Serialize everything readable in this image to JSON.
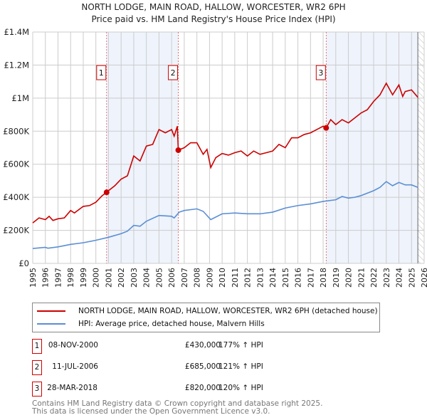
{
  "chart_data": {
    "type": "line",
    "title": "NORTH LODGE, MAIN ROAD, HALLOW, WORCESTER, WR2 6PH",
    "subtitle": "Price paid vs. HM Land Registry's House Price Index (HPI)",
    "xlim": [
      1995,
      2026
    ],
    "ylim": [
      0,
      1400000
    ],
    "x_ticks": [
      "1995",
      "1996",
      "1997",
      "1998",
      "1999",
      "2000",
      "2001",
      "2002",
      "2003",
      "2004",
      "2005",
      "2006",
      "2007",
      "2008",
      "2009",
      "2010",
      "2011",
      "2012",
      "2013",
      "2014",
      "2015",
      "2016",
      "2017",
      "2018",
      "2019",
      "2020",
      "2021",
      "2022",
      "2023",
      "2024",
      "2025",
      "2026"
    ],
    "y_ticks": [
      {
        "v": 0,
        "label": "£0"
      },
      {
        "v": 200000,
        "label": "£200K"
      },
      {
        "v": 400000,
        "label": "£400K"
      },
      {
        "v": 600000,
        "label": "£600K"
      },
      {
        "v": 800000,
        "label": "£800K"
      },
      {
        "v": 1000000,
        "label": "£1M"
      },
      {
        "v": 1200000,
        "label": "£1.2M"
      },
      {
        "v": 1400000,
        "label": "£1.4M"
      }
    ],
    "grid": true,
    "data_end": 2025.5,
    "series": [
      {
        "name": "NORTH LODGE, MAIN ROAD, HALLOW, WORCESTER, WR2 6PH (detached house)",
        "color": "#cc0000",
        "points": [
          [
            1995,
            245000
          ],
          [
            1995.5,
            275000
          ],
          [
            1996,
            265000
          ],
          [
            1996.3,
            285000
          ],
          [
            1996.6,
            260000
          ],
          [
            1997,
            270000
          ],
          [
            1997.5,
            275000
          ],
          [
            1998,
            320000
          ],
          [
            1998.3,
            305000
          ],
          [
            1999,
            345000
          ],
          [
            1999.5,
            350000
          ],
          [
            2000,
            370000
          ],
          [
            2000.5,
            410000
          ],
          [
            2000.85,
            430000
          ],
          [
            2001,
            440000
          ],
          [
            2001.5,
            470000
          ],
          [
            2002,
            510000
          ],
          [
            2002.5,
            530000
          ],
          [
            2003,
            650000
          ],
          [
            2003.5,
            620000
          ],
          [
            2004,
            710000
          ],
          [
            2004.5,
            720000
          ],
          [
            2005,
            810000
          ],
          [
            2005.5,
            790000
          ],
          [
            2006,
            810000
          ],
          [
            2006.2,
            770000
          ],
          [
            2006.45,
            830000
          ],
          [
            2006.53,
            685000
          ],
          [
            2007,
            700000
          ],
          [
            2007.5,
            730000
          ],
          [
            2008,
            730000
          ],
          [
            2008.5,
            660000
          ],
          [
            2008.8,
            690000
          ],
          [
            2009.1,
            580000
          ],
          [
            2009.5,
            640000
          ],
          [
            2010,
            665000
          ],
          [
            2010.5,
            655000
          ],
          [
            2011,
            670000
          ],
          [
            2011.5,
            680000
          ],
          [
            2012,
            650000
          ],
          [
            2012.5,
            680000
          ],
          [
            2013,
            660000
          ],
          [
            2013.5,
            670000
          ],
          [
            2014,
            680000
          ],
          [
            2014.5,
            720000
          ],
          [
            2015,
            700000
          ],
          [
            2015.5,
            760000
          ],
          [
            2016,
            760000
          ],
          [
            2016.5,
            780000
          ],
          [
            2017,
            790000
          ],
          [
            2017.5,
            810000
          ],
          [
            2018,
            830000
          ],
          [
            2018.24,
            820000
          ],
          [
            2018.6,
            870000
          ],
          [
            2019,
            840000
          ],
          [
            2019.5,
            870000
          ],
          [
            2020,
            850000
          ],
          [
            2020.5,
            880000
          ],
          [
            2021,
            910000
          ],
          [
            2021.5,
            930000
          ],
          [
            2022,
            980000
          ],
          [
            2022.5,
            1020000
          ],
          [
            2023,
            1090000
          ],
          [
            2023.5,
            1020000
          ],
          [
            2024,
            1080000
          ],
          [
            2024.3,
            1010000
          ],
          [
            2024.5,
            1040000
          ],
          [
            2025,
            1050000
          ],
          [
            2025.5,
            1005000
          ]
        ]
      },
      {
        "name": "HPI: Average price, detached house, Malvern Hills",
        "color": "#5b8fd4",
        "points": [
          [
            1995,
            90000
          ],
          [
            1996,
            97000
          ],
          [
            1996.2,
            92000
          ],
          [
            1997,
            100000
          ],
          [
            1998,
            115000
          ],
          [
            1999,
            125000
          ],
          [
            2000,
            140000
          ],
          [
            2001,
            158000
          ],
          [
            2002,
            180000
          ],
          [
            2002.5,
            195000
          ],
          [
            2003,
            230000
          ],
          [
            2003.5,
            225000
          ],
          [
            2004,
            255000
          ],
          [
            2005,
            290000
          ],
          [
            2006,
            285000
          ],
          [
            2006.2,
            275000
          ],
          [
            2006.6,
            310000
          ],
          [
            2007,
            320000
          ],
          [
            2008,
            330000
          ],
          [
            2008.5,
            315000
          ],
          [
            2009.1,
            265000
          ],
          [
            2010,
            300000
          ],
          [
            2011,
            305000
          ],
          [
            2012,
            300000
          ],
          [
            2013,
            300000
          ],
          [
            2014,
            310000
          ],
          [
            2015,
            335000
          ],
          [
            2016,
            350000
          ],
          [
            2017,
            360000
          ],
          [
            2018,
            375000
          ],
          [
            2019,
            385000
          ],
          [
            2019.5,
            405000
          ],
          [
            2020,
            395000
          ],
          [
            2020.5,
            400000
          ],
          [
            2021,
            410000
          ],
          [
            2022,
            440000
          ],
          [
            2022.5,
            460000
          ],
          [
            2023,
            495000
          ],
          [
            2023.5,
            470000
          ],
          [
            2024,
            490000
          ],
          [
            2024.5,
            475000
          ],
          [
            2025,
            475000
          ],
          [
            2025.5,
            460000
          ]
        ]
      }
    ],
    "sales": [
      {
        "num": "1",
        "x": 2000.85,
        "price": 430000,
        "date": "08-NOV-2000",
        "price_label": "£430,000",
        "hpi": "177% ↑ HPI"
      },
      {
        "num": "2",
        "x": 2006.53,
        "price": 685000,
        "date": "11-JUL-2006",
        "price_label": "£685,000",
        "hpi": "121% ↑ HPI"
      },
      {
        "num": "3",
        "x": 2018.24,
        "price": 820000,
        "date": "28-MAR-2018",
        "price_label": "£820,000",
        "hpi": "120% ↑ HPI"
      }
    ],
    "legend_placement": "bottom"
  },
  "footer": {
    "line1": "Contains HM Land Registry data © Crown copyright and database right 2025.",
    "line2": "This data is licensed under the Open Government Licence v3.0."
  }
}
